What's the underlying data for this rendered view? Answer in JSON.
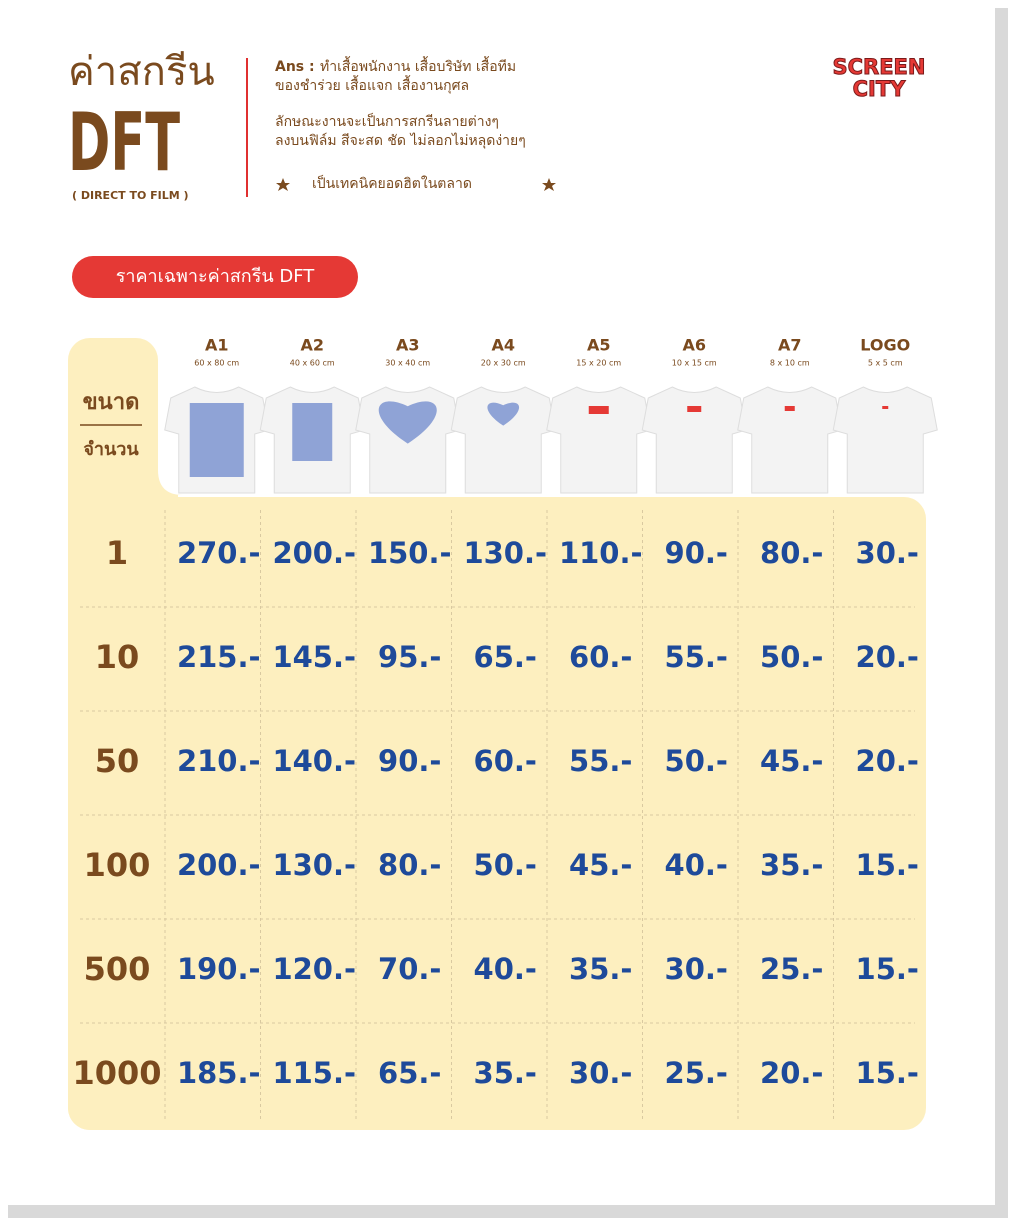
{
  "header": {
    "title": "ค่าสกรีน",
    "code": "DFT",
    "subtitle": "( DIRECT TO FILM )",
    "ans_label": "Ans :",
    "lines": [
      "ทำเสื้อพนักงาน เสื้อบริษัท เสื้อทีม",
      "ของชำร่วย เสื้อแจก เสื้องานกุศล",
      "ลักษณะงานจะเป็นการสกรีนลายต่างๆ",
      "ลงบนฟิล์ม สีจะสด ชัด ไม่ลอกไม่หลุดง่ายๆ"
    ],
    "tagline": "เป็นเทคนิคยอดฮิตในตลาด",
    "logo": [
      "SCREEN",
      "CITY"
    ]
  },
  "badge": "ราคาเฉพาะค่าสกรีน DFT",
  "table": {
    "size_label": "ขนาด",
    "qty_label": "จำนวน",
    "columns": [
      {
        "name": "A1",
        "dim": "60 x 80 cm"
      },
      {
        "name": "A2",
        "dim": "40 x 60 cm"
      },
      {
        "name": "A3",
        "dim": "30 x 40 cm"
      },
      {
        "name": "A4",
        "dim": "20 x 30 cm"
      },
      {
        "name": "A5",
        "dim": "15 x 20 cm"
      },
      {
        "name": "A6",
        "dim": "10 x 15 cm"
      },
      {
        "name": "A7",
        "dim": "8 x 10 cm"
      },
      {
        "name": "LOGO",
        "dim": "5 x 5 cm"
      }
    ],
    "rows": [
      {
        "qty": 1,
        "prices": [
          "270.-",
          "200.-",
          "150.-",
          "130.-",
          "110.-",
          "90.-",
          "80.-",
          "30.-"
        ]
      },
      {
        "qty": 10,
        "prices": [
          "215.-",
          "145.-",
          "95.-",
          "65.-",
          "60.-",
          "55.-",
          "50.-",
          "20.-"
        ]
      },
      {
        "qty": 50,
        "prices": [
          "210.-",
          "140.-",
          "90.-",
          "60.-",
          "55.-",
          "50.-",
          "45.-",
          "20.-"
        ]
      },
      {
        "qty": 100,
        "prices": [
          "200.-",
          "130.-",
          "80.-",
          "50.-",
          "45.-",
          "40.-",
          "35.-",
          "15.-"
        ]
      },
      {
        "qty": 500,
        "prices": [
          "190.-",
          "120.-",
          "70.-",
          "40.-",
          "35.-",
          "30.-",
          "25.-",
          "15.-"
        ]
      },
      {
        "qty": 1000,
        "prices": [
          "185.-",
          "115.-",
          "65.-",
          "35.-",
          "30.-",
          "25.-",
          "20.-",
          "15.-"
        ]
      }
    ]
  }
}
